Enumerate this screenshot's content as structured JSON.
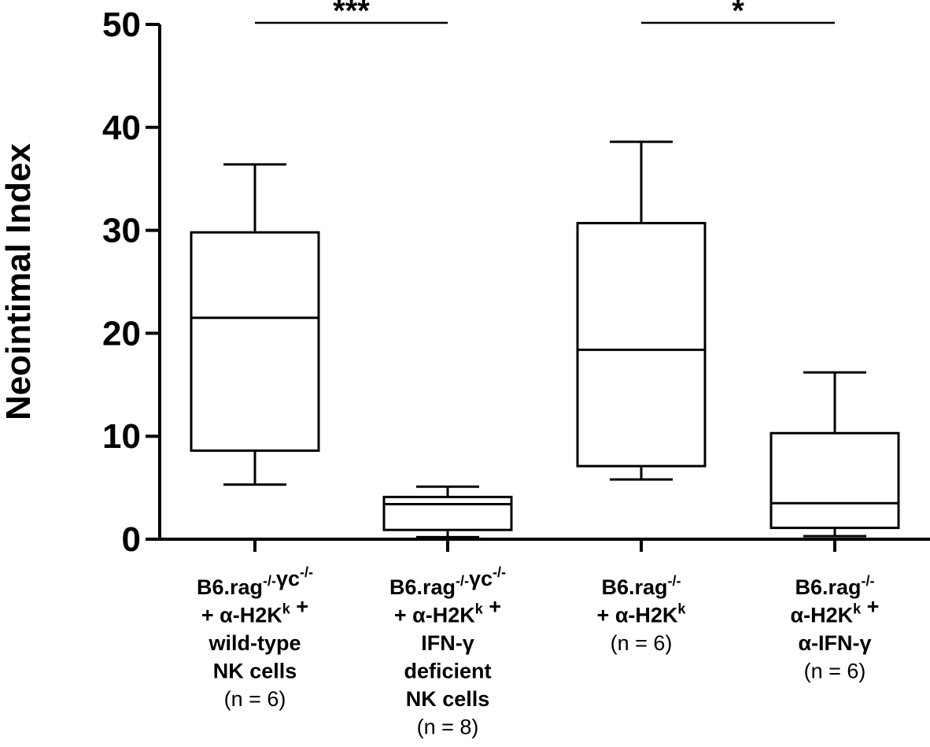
{
  "chart_data": {
    "type": "box",
    "title": "",
    "xlabel": "",
    "ylabel": "Neointimal Index",
    "ylim": [
      0,
      50
    ],
    "yticks": [
      0,
      10,
      20,
      30,
      40,
      50
    ],
    "grid": false,
    "legend": "none",
    "categories": [
      {
        "lines": [
          {
            "bold": true,
            "parts": [
              {
                "t": "B6.rag"
              },
              {
                "t": "-/-",
                "sup": true
              },
              {
                "t": "γc"
              },
              {
                "t": "-/-",
                "sup": true
              }
            ]
          },
          {
            "bold": true,
            "parts": [
              {
                "t": "+ α-H2K"
              },
              {
                "t": "k",
                "sup": true
              },
              {
                "t": " +"
              }
            ]
          },
          {
            "bold": true,
            "parts": [
              {
                "t": "wild-type"
              }
            ]
          },
          {
            "bold": true,
            "parts": [
              {
                "t": "NK cells"
              }
            ]
          },
          {
            "bold": false,
            "parts": [
              {
                "t": "(n = 6)"
              }
            ]
          }
        ]
      },
      {
        "lines": [
          {
            "bold": true,
            "parts": [
              {
                "t": "B6.rag"
              },
              {
                "t": "-/-",
                "sup": true
              },
              {
                "t": "γc"
              },
              {
                "t": "-/-",
                "sup": true
              }
            ]
          },
          {
            "bold": true,
            "parts": [
              {
                "t": "+ α-H2K"
              },
              {
                "t": "k",
                "sup": true
              },
              {
                "t": " +"
              }
            ]
          },
          {
            "bold": true,
            "parts": [
              {
                "t": "IFN-γ"
              }
            ]
          },
          {
            "bold": true,
            "parts": [
              {
                "t": "deficient"
              }
            ]
          },
          {
            "bold": true,
            "parts": [
              {
                "t": "NK cells"
              }
            ]
          },
          {
            "bold": false,
            "parts": [
              {
                "t": "(n = 8)"
              }
            ]
          }
        ]
      },
      {
        "lines": [
          {
            "bold": true,
            "parts": [
              {
                "t": "B6.rag"
              },
              {
                "t": "-/-",
                "sup": true
              }
            ]
          },
          {
            "bold": true,
            "parts": [
              {
                "t": "+ α-H2K"
              },
              {
                "t": "k",
                "sup": true
              }
            ]
          },
          {
            "bold": false,
            "parts": [
              {
                "t": "(n = 6)"
              }
            ]
          }
        ]
      },
      {
        "lines": [
          {
            "bold": true,
            "parts": [
              {
                "t": "B6.rag"
              },
              {
                "t": "-/-",
                "sup": true
              }
            ]
          },
          {
            "bold": true,
            "parts": [
              {
                "t": "α-H2K"
              },
              {
                "t": "k",
                "sup": true
              },
              {
                "t": " +"
              }
            ]
          },
          {
            "bold": true,
            "parts": [
              {
                "t": "α-IFN-γ"
              }
            ]
          },
          {
            "bold": false,
            "parts": [
              {
                "t": "(n = 6)"
              }
            ]
          }
        ]
      }
    ],
    "boxes": [
      {
        "min": 5.3,
        "q1": 8.6,
        "median": 21.5,
        "q3": 29.8,
        "max": 36.4
      },
      {
        "min": 0.2,
        "q1": 0.9,
        "median": 3.4,
        "q3": 4.1,
        "max": 5.1
      },
      {
        "min": 5.8,
        "q1": 7.1,
        "median": 18.4,
        "q3": 30.7,
        "max": 38.6
      },
      {
        "min": 0.3,
        "q1": 1.1,
        "median": 3.5,
        "q3": 10.3,
        "max": 16.2
      }
    ],
    "significance": [
      {
        "from": 0,
        "to": 1,
        "label": "***",
        "y": 50
      },
      {
        "from": 2,
        "to": 3,
        "label": "*",
        "y": 50
      }
    ]
  }
}
